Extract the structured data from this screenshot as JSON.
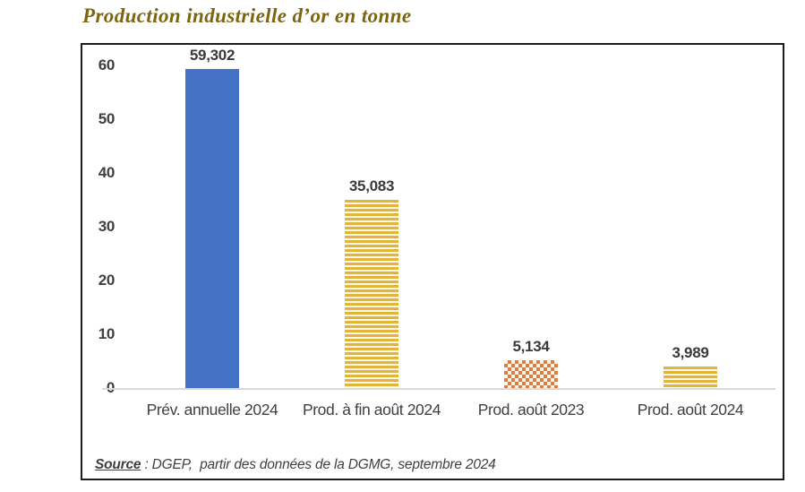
{
  "page": {
    "title": "Production industrielle d’or en tonne"
  },
  "chart_data": {
    "type": "bar",
    "title": "Production industrielle d’or en tonne",
    "categories": [
      "Prév. annuelle 2024",
      "Prod. à fin août 2024",
      "Prod. août 2023",
      "Prod. août 2024"
    ],
    "values": [
      59.302,
      35.083,
      5.134,
      3.989
    ],
    "data_labels": [
      "59,302",
      "35,083",
      "5,134",
      "3,989"
    ],
    "bar_styles": [
      "solid-blue",
      "stripes-gold",
      "checker-orange",
      "stripes-gold"
    ],
    "xlabel": "",
    "ylabel": "",
    "ylim": [
      0,
      60
    ],
    "yticks": [
      0,
      10,
      20,
      30,
      40,
      50,
      60
    ],
    "grid": false,
    "legend": false,
    "colors": {
      "bar_blue": "#4472c4",
      "bar_gold": "#e2b437",
      "bar_orange": "#d97f45",
      "pattern_cream": "#fdf8e8",
      "axis_line": "#d9d9d9",
      "label_text": "#3f3f3f",
      "title_text": "#7d640f"
    }
  },
  "source": {
    "label": "Source",
    "text": " : DGEP,  partir des données de la DGMG, septembre 2024"
  }
}
